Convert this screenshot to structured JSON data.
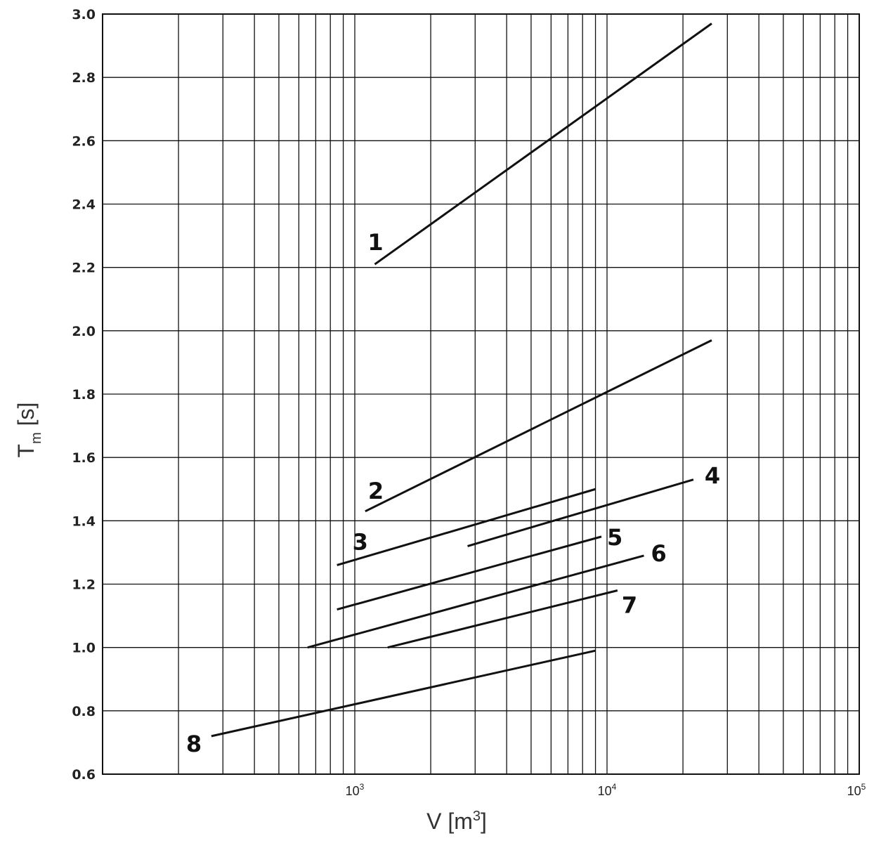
{
  "chart_data": {
    "type": "line",
    "xlabel": "V [m³]",
    "xlabel_parts": {
      "base": "V [m",
      "sup": "3",
      "end": "]"
    },
    "ylabel_parts": {
      "base": "T",
      "sub": "m",
      "end": " [s]"
    },
    "x_scale": "log",
    "xlim": [
      100,
      100000
    ],
    "ylim": [
      0.6,
      3.0
    ],
    "grid": true,
    "y_ticks": [
      "0.6",
      "0.8",
      "1.0",
      "1.2",
      "1.4",
      "1.6",
      "1.8",
      "2.0",
      "2.2",
      "2.4",
      "2.6",
      "2.8",
      "3.0"
    ],
    "x_ticks": [
      {
        "value": 1000,
        "base": "10",
        "exp": "3"
      },
      {
        "value": 10000,
        "base": "10",
        "exp": "4"
      },
      {
        "value": 100000,
        "base": "10",
        "exp": "5"
      }
    ],
    "series": [
      {
        "name": "1",
        "x": [
          1200,
          26000
        ],
        "y": [
          2.21,
          2.97
        ]
      },
      {
        "name": "2",
        "x": [
          1100,
          26000
        ],
        "y": [
          1.43,
          1.97
        ]
      },
      {
        "name": "3",
        "x": [
          850,
          9000
        ],
        "y": [
          1.26,
          1.5
        ]
      },
      {
        "name": "4",
        "x": [
          2800,
          22000
        ],
        "y": [
          1.32,
          1.53
        ]
      },
      {
        "name": "5",
        "x": [
          850,
          9500
        ],
        "y": [
          1.12,
          1.35
        ]
      },
      {
        "name": "6",
        "x": [
          650,
          14000
        ],
        "y": [
          1.0,
          1.29
        ]
      },
      {
        "name": "7",
        "x": [
          1350,
          11000
        ],
        "y": [
          1.0,
          1.18
        ]
      },
      {
        "name": "8",
        "x": [
          270,
          9000
        ],
        "y": [
          0.72,
          0.99
        ]
      }
    ]
  }
}
